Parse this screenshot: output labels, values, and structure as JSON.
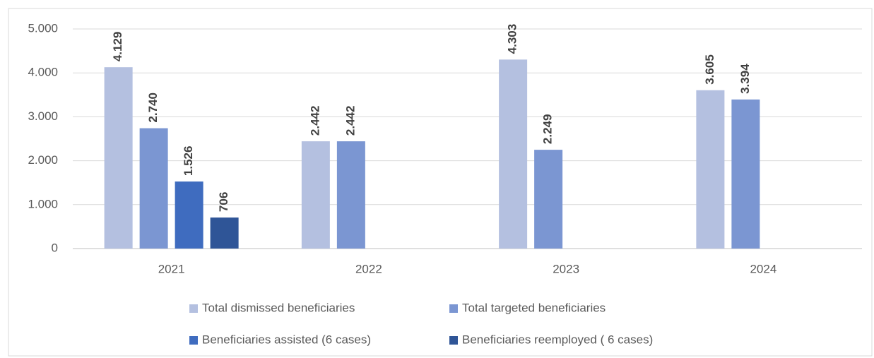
{
  "chart_data": {
    "type": "bar",
    "categories": [
      "2021",
      "2022",
      "2023",
      "2024"
    ],
    "series": [
      {
        "name": "Total dismissed beneficiaries",
        "color": "#b4c0e0",
        "values": [
          4129,
          2442,
          4303,
          3605
        ],
        "value_labels": [
          "4.129",
          "2.442",
          "4.303",
          "3.605"
        ]
      },
      {
        "name": "Total targeted beneficiaries",
        "color": "#7b96d2",
        "values": [
          2740,
          2442,
          2249,
          3394
        ],
        "value_labels": [
          "2.740",
          "2.442",
          "2.249",
          "3.394"
        ]
      },
      {
        "name": "Beneficiaries assisted (6 cases)",
        "color": "#3f6cbf",
        "values": [
          1526,
          null,
          null,
          null
        ],
        "value_labels": [
          "1.526",
          null,
          null,
          null
        ]
      },
      {
        "name": "Beneficiaries reemployed ( 6 cases)",
        "color": "#2f5597",
        "values": [
          706,
          null,
          null,
          null
        ],
        "value_labels": [
          "706",
          null,
          null,
          null
        ]
      }
    ],
    "ylim": [
      0,
      5000
    ],
    "yticks": [
      0,
      {
        "value": 1000,
        "label": "1.000"
      },
      {
        "value": 2000,
        "label": "2.000"
      },
      {
        "value": 3000,
        "label": "3.000"
      },
      {
        "value": 4000,
        "label": "4.000"
      },
      {
        "value": 5000,
        "label": "5.000"
      }
    ],
    "grid": true
  }
}
